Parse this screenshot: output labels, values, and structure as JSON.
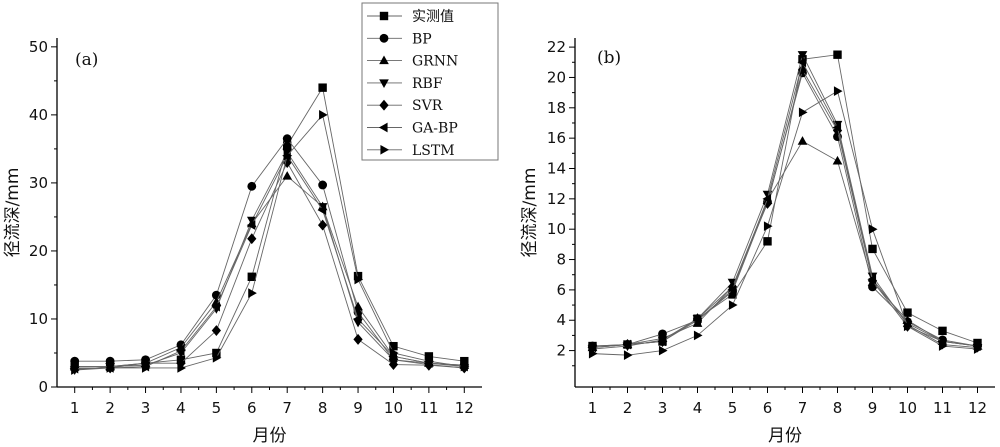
{
  "chart_data": [
    {
      "type": "line",
      "panel_label": "(a)",
      "xlabel": "月份",
      "ylabel": "径流深/mm",
      "x": [
        1,
        2,
        3,
        4,
        5,
        6,
        7,
        8,
        9,
        10,
        11,
        12
      ],
      "xticks": [
        "1",
        "2",
        "3",
        "4",
        "5",
        "6",
        "7",
        "8",
        "9",
        "10",
        "11",
        "12"
      ],
      "ylim": [
        0,
        51.3
      ],
      "yticks": [
        0,
        10,
        20,
        30,
        40,
        50
      ],
      "grid": false,
      "legend_position": "top-right",
      "series": [
        {
          "name": "实测值",
          "marker": "square",
          "values": [
            3.0,
            3.0,
            3.5,
            4.0,
            5.0,
            16.2,
            35.5,
            44.0,
            16.3,
            6.0,
            4.5,
            3.8
          ]
        },
        {
          "name": "BP",
          "marker": "circle",
          "values": [
            3.8,
            3.8,
            4.0,
            6.2,
            13.5,
            29.5,
            36.5,
            29.7,
            11.0,
            4.0,
            3.5,
            3.2
          ]
        },
        {
          "name": "GRNN",
          "marker": "triangle-up",
          "values": [
            3.0,
            3.0,
            3.5,
            5.8,
            12.5,
            24.0,
            31.0,
            26.5,
            11.8,
            4.5,
            3.5,
            3.2
          ]
        },
        {
          "name": "RBF",
          "marker": "triangle-down",
          "values": [
            2.5,
            3.0,
            3.2,
            5.0,
            11.5,
            24.5,
            34.5,
            26.5,
            9.5,
            4.0,
            3.3,
            2.8
          ]
        },
        {
          "name": "SVR",
          "marker": "diamond",
          "values": [
            2.8,
            2.8,
            3.5,
            3.5,
            8.3,
            21.8,
            33.0,
            23.8,
            7.0,
            3.3,
            3.2,
            2.8
          ]
        },
        {
          "name": "GA-BP",
          "marker": "triangle-left",
          "values": [
            2.7,
            2.8,
            3.0,
            5.3,
            11.8,
            23.8,
            34.0,
            26.0,
            10.0,
            4.5,
            3.5,
            3.0
          ]
        },
        {
          "name": "LSTM",
          "marker": "triangle-right",
          "values": [
            2.5,
            2.8,
            2.8,
            2.8,
            4.3,
            13.8,
            34.0,
            40.0,
            15.8,
            5.0,
            3.8,
            3.0
          ]
        }
      ]
    },
    {
      "type": "line",
      "panel_label": "(b)",
      "xlabel": "月份",
      "ylabel": "径流深/mm",
      "x": [
        1,
        2,
        3,
        4,
        5,
        6,
        7,
        8,
        9,
        10,
        11,
        12
      ],
      "xticks": [
        "1",
        "2",
        "3",
        "4",
        "5",
        "6",
        "7",
        "8",
        "9",
        "10",
        "11",
        "12"
      ],
      "ylim": [
        -0.4,
        22.6
      ],
      "yticks": [
        2,
        4,
        6,
        8,
        10,
        12,
        14,
        16,
        18,
        20,
        22
      ],
      "grid": false,
      "series": [
        {
          "name": "实测值",
          "marker": "square",
          "values": [
            2.3,
            2.4,
            2.6,
            4.1,
            5.7,
            9.2,
            21.2,
            21.5,
            8.7,
            4.5,
            3.3,
            2.5
          ]
        },
        {
          "name": "BP",
          "marker": "circle",
          "values": [
            2.3,
            2.4,
            3.1,
            4.0,
            5.9,
            11.8,
            20.3,
            16.1,
            6.2,
            3.9,
            2.7,
            2.3
          ]
        },
        {
          "name": "GRNN",
          "marker": "triangle-up",
          "values": [
            2.2,
            2.4,
            2.8,
            3.8,
            6.2,
            11.9,
            15.8,
            14.5,
            6.5,
            4.0,
            2.6,
            2.3
          ]
        },
        {
          "name": "RBF",
          "marker": "triangle-down",
          "values": [
            2.1,
            2.3,
            2.7,
            4.1,
            6.5,
            12.3,
            21.5,
            16.9,
            6.9,
            3.7,
            2.4,
            2.2
          ]
        },
        {
          "name": "SVR",
          "marker": "diamond",
          "values": [
            2.2,
            2.4,
            2.6,
            4.1,
            6.2,
            11.7,
            20.5,
            16.5,
            6.6,
            3.6,
            2.6,
            2.3
          ]
        },
        {
          "name": "GA-BP",
          "marker": "triangle-left",
          "values": [
            2.2,
            2.4,
            2.6,
            4.0,
            6.0,
            12.0,
            21.0,
            16.7,
            6.7,
            3.8,
            2.6,
            2.3
          ]
        },
        {
          "name": "LSTM",
          "marker": "triangle-right",
          "values": [
            1.8,
            1.7,
            2.0,
            3.0,
            5.0,
            10.2,
            17.7,
            19.1,
            10.0,
            3.6,
            2.3,
            2.1
          ]
        }
      ]
    }
  ],
  "colors": {
    "line": "#666666",
    "marker": "#000000",
    "axis": "#000000"
  }
}
